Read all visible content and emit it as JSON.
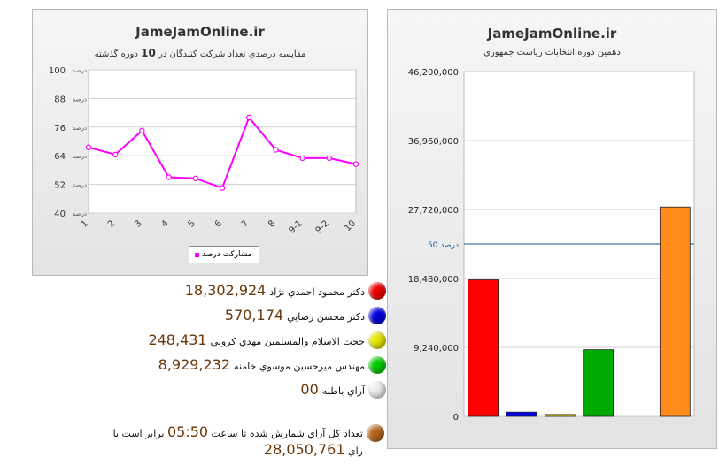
{
  "left_chart": {
    "site_title": "JameJamOnline.ir",
    "title_pre": "مقايسه درصدي تعداد شركت كنندگان در",
    "title_num": "10",
    "title_post": "دوره گذشته",
    "legend": "مشاركت درصد",
    "tick_suffix": "درصد"
  },
  "right_chart": {
    "site_title": "JameJamOnline.ir",
    "subtitle": "دهمين دوره انتخابات رياست جمهوري",
    "ref_label": "درصد 50"
  },
  "chart_data": [
    {
      "type": "line",
      "title": "مقايسه درصدي تعداد شركت كنندگان در 10 دوره گذشته",
      "categories": [
        "1",
        "2",
        "3",
        "4",
        "5",
        "6",
        "7",
        "8",
        "9-1",
        "9-2",
        "10"
      ],
      "series": [
        {
          "name": "مشاركت درصد",
          "values": [
            67.5,
            64.5,
            74.5,
            55,
            54.5,
            50.5,
            80,
            66.5,
            63,
            63,
            60.5
          ]
        }
      ],
      "ylim": [
        40,
        100
      ],
      "yticks": [
        40,
        52,
        64,
        76,
        88,
        100
      ],
      "grid": true,
      "legend_position": "bottom",
      "color": "#ff00ff"
    },
    {
      "type": "bar",
      "title": "دهمين دوره انتخابات رياست جمهوري",
      "categories": [
        "دكتر محمود احمدي نژاد",
        "دكتر محسن رضايي",
        "حجت الاسلام والمسلمين مهدي كروبي",
        "مهندس ميرحسين موسوي خامنه",
        "آراي باطله",
        "تعداد كل آراي شمارش شده"
      ],
      "values": [
        18302924,
        570174,
        248431,
        8929232,
        0,
        28050761
      ],
      "colors": [
        "#ff0000",
        "#0000ee",
        "#dddd00",
        "#00aa00",
        "#dddddd",
        "#ff8c1a"
      ],
      "ylim": [
        0,
        46200000
      ],
      "yticks": [
        "0",
        "9,240,000",
        "18,480,000",
        "27,720,000",
        "36,960,000",
        "46,200,000"
      ],
      "reference_line": 23100000,
      "grid": true
    }
  ],
  "results": [
    {
      "label": "دكتر محمود احمدي نژاد",
      "value": "18,302,924",
      "color": "#ee0000"
    },
    {
      "label": "دكتر محسن رضايي",
      "value": "570,174",
      "color": "#0000dd"
    },
    {
      "label": "حجت الاسلام والمسلمين مهدي كروبي",
      "value": "248,431",
      "color": "#e6e600"
    },
    {
      "label": "مهندس ميرحسين موسوي خامنه",
      "value": "8,929,232",
      "color": "#00cc00"
    },
    {
      "label": "آراي باطله",
      "value": "00",
      "color": "#eeeeee"
    }
  ],
  "total": {
    "line1_pre": "تعداد كل آراي شمارش شده تا ساعت",
    "time": "05:50",
    "line1_post": "برابر است با",
    "value": "28,050,761",
    "unit": "راي",
    "color": "#b8661e"
  }
}
